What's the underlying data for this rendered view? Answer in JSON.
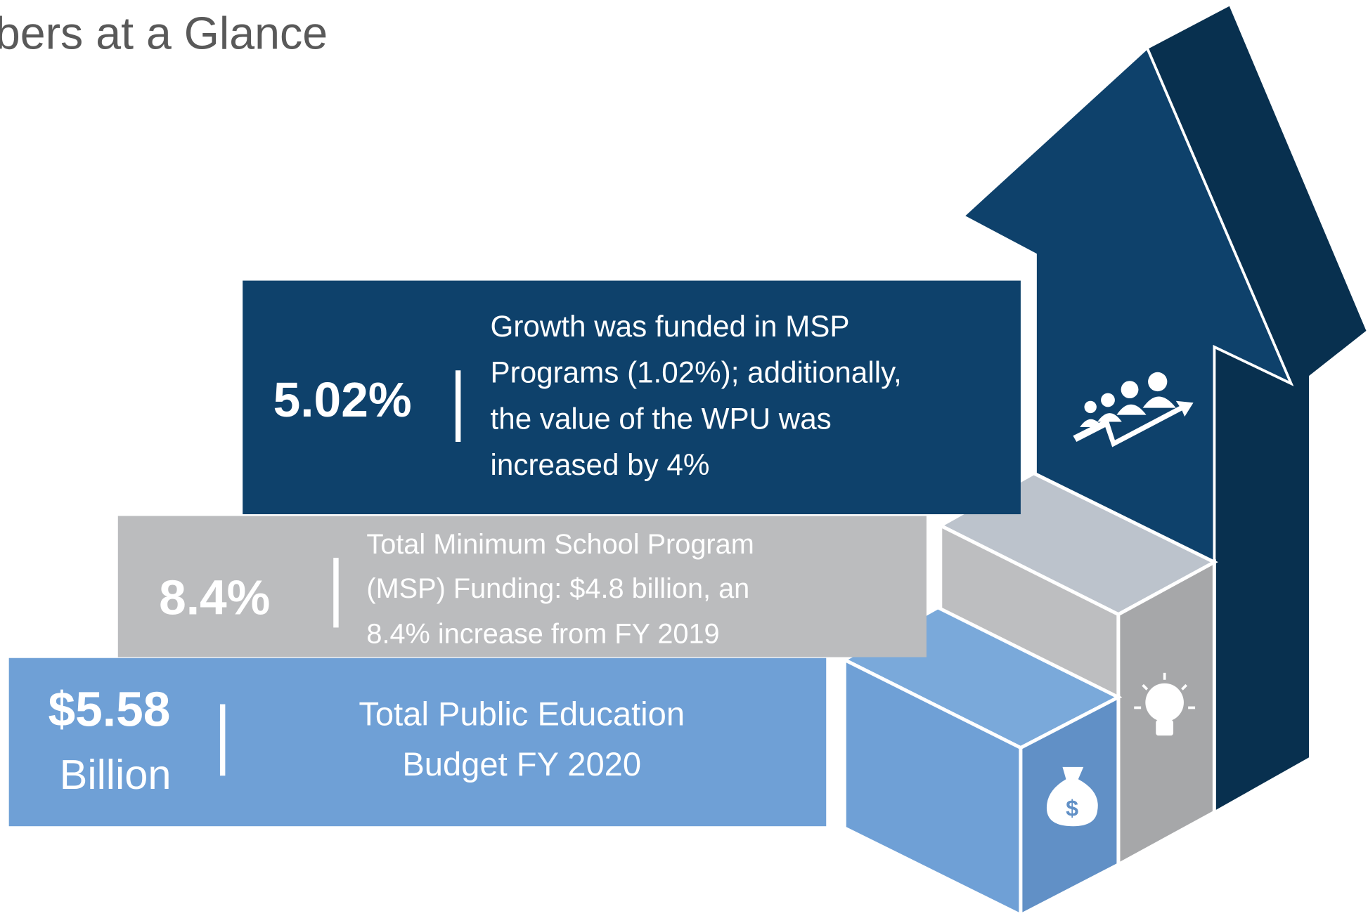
{
  "header": {
    "title": "bers at a Glance"
  },
  "rows": [
    {
      "stat": [
        "5.02%"
      ],
      "description": [
        "Growth was funded in MSP",
        "Programs (1.02%); additionally,",
        "the value of the WPU was",
        "increased by 4%"
      ]
    },
    {
      "stat": [
        "8.4%"
      ],
      "description": [
        "Total Minimum School Program",
        "(MSP) Funding: $4.8 billion, an",
        "8.4% increase from FY 2019"
      ]
    },
    {
      "stat": [
        "$5.58",
        "Billion"
      ],
      "description": [
        "Total Public Education",
        "Budget FY 2020"
      ]
    }
  ]
}
